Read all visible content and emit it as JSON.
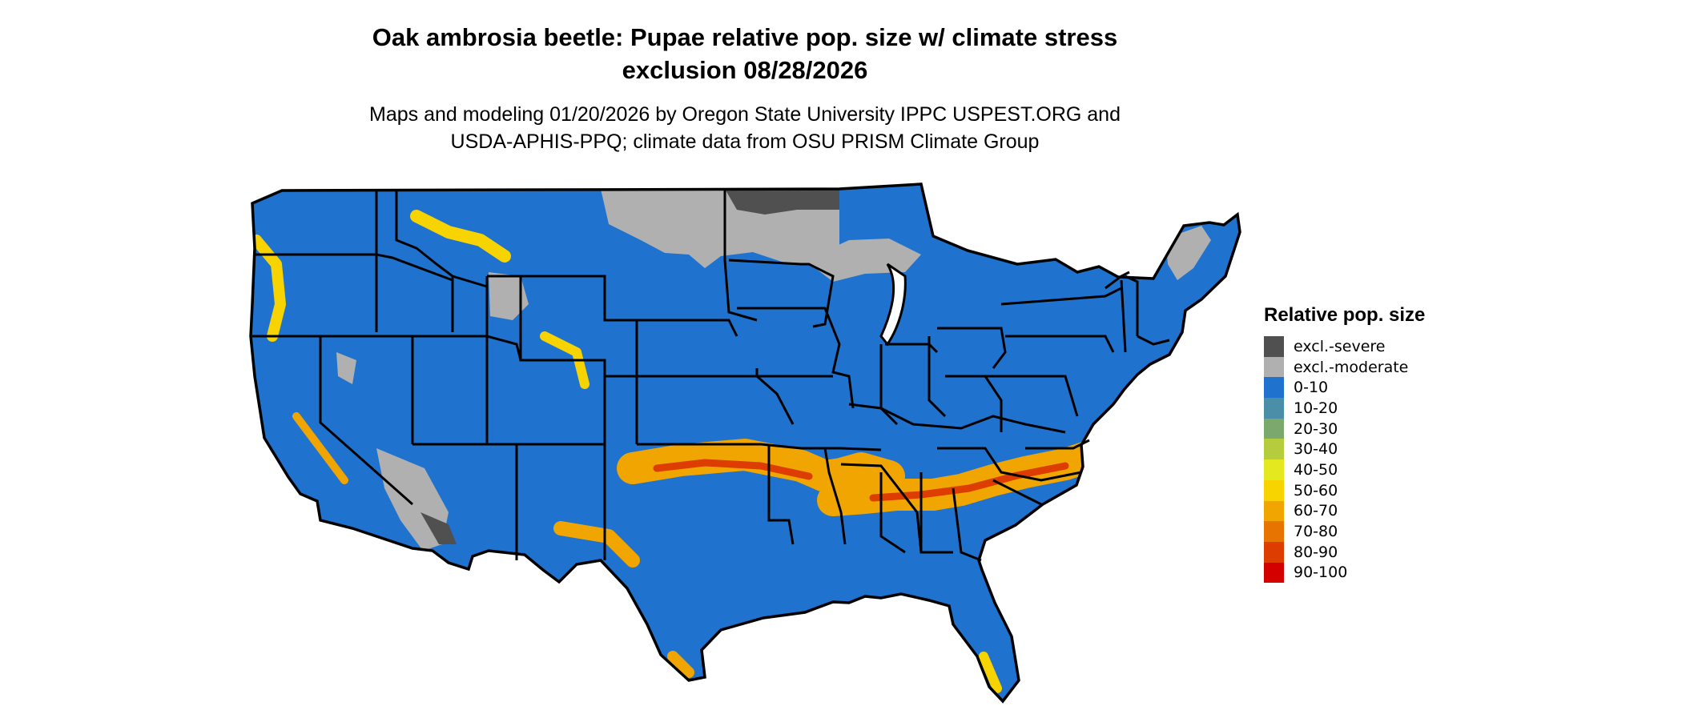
{
  "title_lines": [
    "Oak ambrosia beetle: Pupae relative pop. size w/ climate stress",
    "exclusion 08/28/2026"
  ],
  "subtitle_lines": [
    "Maps and modeling 01/20/2026 by Oregon State University IPPC USPEST.ORG and",
    "USDA-APHIS-PPQ; climate data from OSU PRISM Climate Group"
  ],
  "legend": {
    "title": "Relative pop. size",
    "items": [
      {
        "label": "excl.-severe",
        "color": "#505050"
      },
      {
        "label": "excl.-moderate",
        "color": "#b0b0b0"
      },
      {
        "label": "0-10",
        "color": "#1f72ce"
      },
      {
        "label": "10-20",
        "color": "#4a8fa7"
      },
      {
        "label": "20-30",
        "color": "#7aa86d"
      },
      {
        "label": "30-40",
        "color": "#b5cc3c"
      },
      {
        "label": "40-50",
        "color": "#e4e81e"
      },
      {
        "label": "50-60",
        "color": "#f7d400"
      },
      {
        "label": "60-70",
        "color": "#f0a500"
      },
      {
        "label": "70-80",
        "color": "#e87400"
      },
      {
        "label": "80-90",
        "color": "#dd3d00"
      },
      {
        "label": "90-100",
        "color": "#d40000"
      }
    ]
  },
  "map": {
    "region": "Contiguous United States",
    "base_color": "#1f72ce",
    "moderate_color": "#b0b0b0",
    "severe_color": "#505050",
    "high_band_color": "#f0a500",
    "peak_color": "#dd3d00",
    "border_color": "#000000"
  }
}
